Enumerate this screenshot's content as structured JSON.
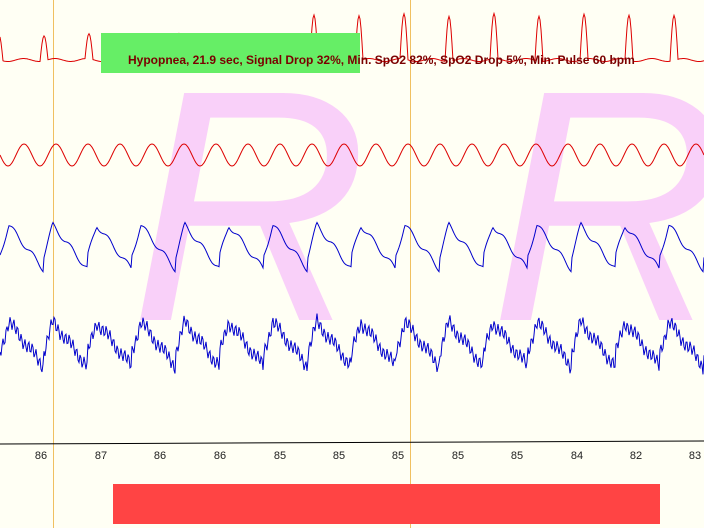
{
  "watermark": [
    "R",
    "R"
  ],
  "annotation": "Hypopnea, 21.9 sec, Signal Drop 32%, Min. SpO2 82%, SpO2 Drop 5%, Min. Pulse 60 bpm",
  "readings": [
    86,
    87,
    86,
    86,
    85,
    85,
    85,
    85,
    85,
    84,
    82,
    83
  ]
}
